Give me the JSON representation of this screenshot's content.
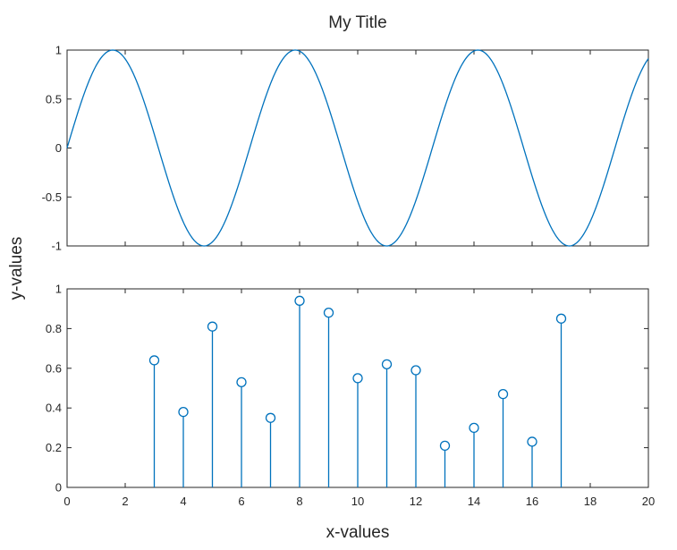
{
  "chart_data": {
    "title": "My Title",
    "xlabel": "x-values",
    "ylabel": "y-values",
    "line_color": "#0072BD",
    "axis_color": "#262626",
    "x_ticks": [
      "0",
      "2",
      "4",
      "6",
      "8",
      "10",
      "12",
      "14",
      "16",
      "18",
      "20"
    ],
    "subplots": [
      {
        "type": "line",
        "function": "sin",
        "series": [
          {
            "values": "y = sin(x)"
          }
        ],
        "xlim": [
          0,
          20
        ],
        "ylim": [
          -1,
          1
        ],
        "y_ticks": [
          "-1",
          "-0.5",
          "0",
          "0.5",
          "1"
        ],
        "show_x_tick_labels": false,
        "grid": false
      },
      {
        "type": "stem",
        "x": [
          3,
          4,
          5,
          6,
          7,
          8,
          9,
          10,
          11,
          12,
          13,
          14,
          15,
          16,
          17
        ],
        "y": [
          0.64,
          0.38,
          0.81,
          0.53,
          0.35,
          0.94,
          0.88,
          0.55,
          0.62,
          0.59,
          0.21,
          0.3,
          0.47,
          0.23,
          0.85
        ],
        "xlim": [
          0,
          20
        ],
        "ylim": [
          0,
          1
        ],
        "y_ticks": [
          "0",
          "0.2",
          "0.4",
          "0.6",
          "0.8",
          "1"
        ],
        "show_x_tick_labels": true,
        "grid": false
      }
    ]
  }
}
